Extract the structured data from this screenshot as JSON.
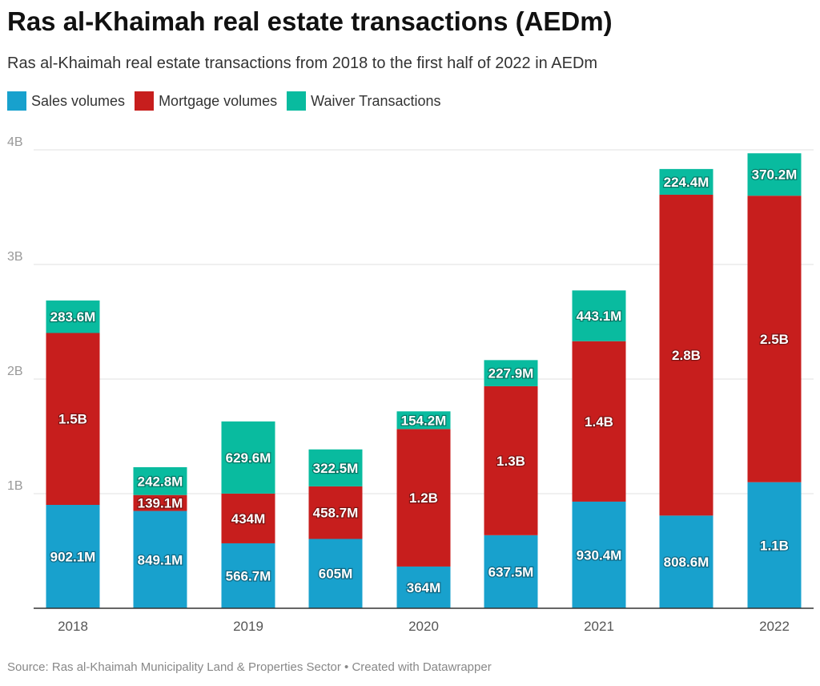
{
  "title": "Ras al-Khaimah real estate transactions (AEDm)",
  "subtitle": "Ras al-Khaimah real estate transactions from 2018 to the first half of 2022 in AEDm",
  "source": "Source: Ras al-Khaimah Municipality Land & Properties Sector • Created with Datawrapper",
  "chart_data": {
    "type": "bar",
    "stacked": true,
    "title": "Ras al-Khaimah real estate transactions (AEDm)",
    "subtitle": "Ras al-Khaimah real estate transactions from 2018 to the first half of 2022 in AEDm",
    "legend_position": "top-left",
    "grid": true,
    "ylim": [
      0,
      4000
    ],
    "y_ticks": [
      {
        "value": 1000,
        "label": "1B"
      },
      {
        "value": 2000,
        "label": "2B"
      },
      {
        "value": 3000,
        "label": "3B"
      },
      {
        "value": 4000,
        "label": "4B"
      }
    ],
    "x_tick_labels": [
      "2018",
      "2019",
      "2020",
      "2021",
      "2022"
    ],
    "series": [
      {
        "name": "Sales volumes",
        "color": "#18a1cd",
        "values": [
          902.1,
          849.1,
          566.7,
          605,
          364,
          637.5,
          930.4,
          808.6,
          1100
        ],
        "labels": [
          "902.1M",
          "849.1M",
          "566.7M",
          "605M",
          "364M",
          "637.5M",
          "930.4M",
          "808.6M",
          "1.1B"
        ]
      },
      {
        "name": "Mortgage volumes",
        "color": "#c71e1d",
        "values": [
          1500,
          139.1,
          434,
          458.7,
          1200,
          1300,
          1400,
          2800,
          2500
        ],
        "labels": [
          "1.5B",
          "139.1M",
          "434M",
          "458.7M",
          "1.2B",
          "1.3B",
          "1.4B",
          "2.8B",
          "2.5B"
        ]
      },
      {
        "name": "Waiver Transactions",
        "color": "#09bb9f",
        "values": [
          283.6,
          242.8,
          629.6,
          322.5,
          154.2,
          227.9,
          443.1,
          224.4,
          370.2
        ],
        "labels": [
          "283.6M",
          "242.8M",
          "629.6M",
          "322.5M",
          "154.2M",
          "227.9M",
          "443.1M",
          "224.4M",
          "370.2M"
        ]
      }
    ]
  }
}
